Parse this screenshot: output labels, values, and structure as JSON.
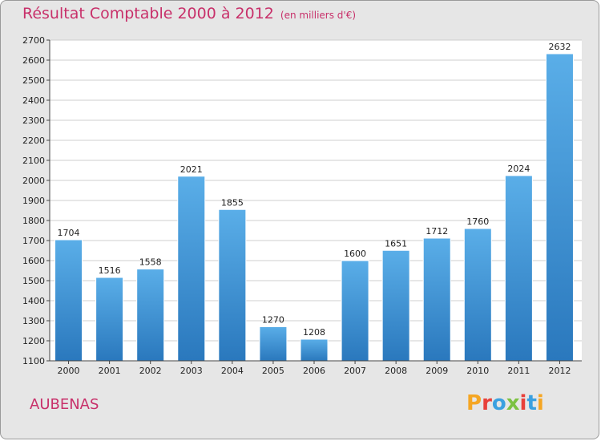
{
  "header": {
    "title": "Résultat Comptable 2000 à 2012",
    "subtitle": "(en milliers d'€)"
  },
  "footer": {
    "city": "AUBENAS",
    "logo_letters": [
      "P",
      "r",
      "o",
      "x",
      "i",
      "t",
      "i"
    ],
    "logo_colors": [
      "#f5a623",
      "#e8403a",
      "#3aa0e0",
      "#7cc242",
      "#e8403a",
      "#3aa0e0",
      "#f5a623"
    ]
  },
  "chart_data": {
    "type": "bar",
    "title": "Résultat Comptable 2000 à 2012",
    "subtitle": "(en milliers d'€)",
    "categories": [
      "2000",
      "2001",
      "2002",
      "2003",
      "2004",
      "2005",
      "2006",
      "2007",
      "2008",
      "2009",
      "2010",
      "2011",
      "2012"
    ],
    "values": [
      1704,
      1516,
      1558,
      2021,
      1855,
      1270,
      1208,
      1600,
      1651,
      1712,
      1760,
      2024,
      2632
    ],
    "ylim": [
      1100,
      2700
    ],
    "yticks": [
      1100,
      1200,
      1300,
      1400,
      1500,
      1600,
      1700,
      1800,
      1900,
      2000,
      2100,
      2200,
      2300,
      2400,
      2500,
      2600,
      2700
    ],
    "grid": true,
    "bar_color": "#4a9ee0"
  }
}
